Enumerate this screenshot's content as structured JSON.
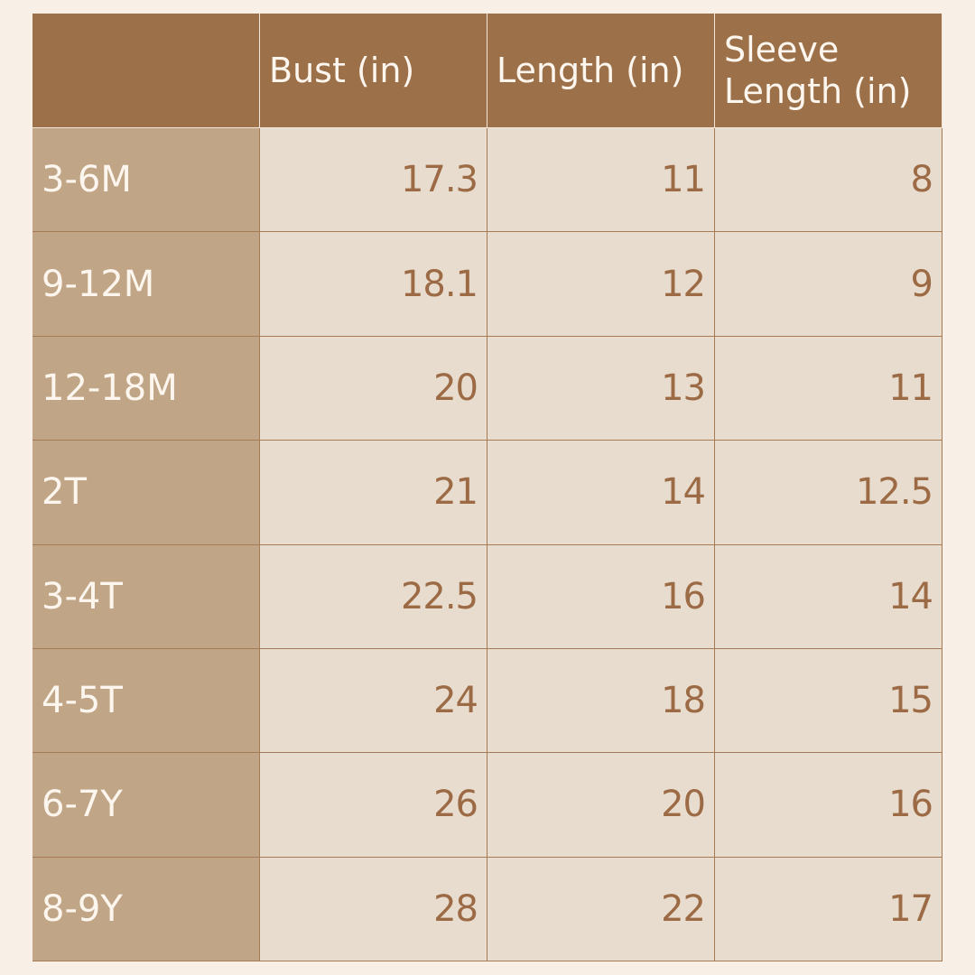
{
  "table": {
    "columns": [
      "Bust (in)",
      "Length (in)",
      "Sleeve Length (in)"
    ],
    "rows": [
      [
        "3-6M",
        17.3,
        11,
        8
      ],
      [
        "9-12M",
        18.1,
        12,
        9
      ],
      [
        "12-18M",
        20,
        13,
        11
      ],
      [
        "2T",
        21,
        14,
        12.5
      ],
      [
        "3-4T",
        22.5,
        16,
        14
      ],
      [
        "4-5T",
        24,
        18,
        15
      ],
      [
        "6-7Y",
        26,
        20,
        16
      ],
      [
        "8-9Y",
        28,
        22,
        17
      ]
    ]
  }
}
